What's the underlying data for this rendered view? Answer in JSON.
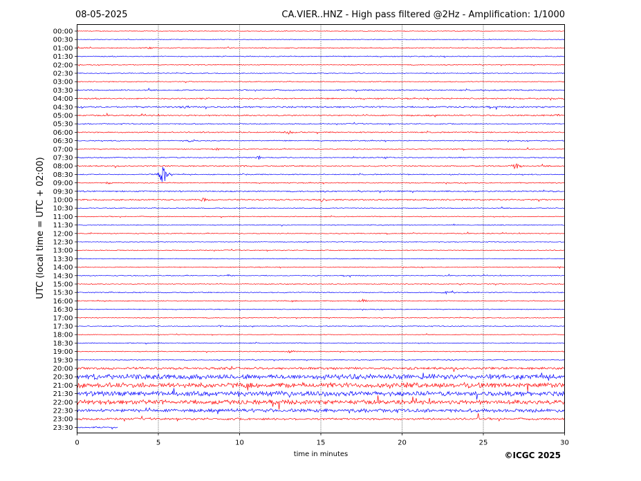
{
  "chart_data": {
    "type": "line",
    "plot_kind": "helicorder",
    "date": "08-05-2025",
    "title": "CA.VIER..HNZ - High pass filtered @2Hz - Amplification: 1/1000",
    "xlabel": "time in minutes",
    "ylabel": "UTC (local time = UTC + 02:00)",
    "credit": "©ICGC 2025",
    "xlim": [
      0,
      30
    ],
    "xticks": [
      0,
      5,
      10,
      15,
      20,
      25,
      30
    ],
    "grid": "vertical dotted at 5-minute ticks",
    "trace_colors": [
      "#ff0000",
      "#0000ff"
    ],
    "row_labels": [
      "00:00",
      "00:30",
      "01:00",
      "01:30",
      "02:00",
      "02:30",
      "03:00",
      "03:30",
      "04:00",
      "04:30",
      "05:00",
      "05:30",
      "06:00",
      "06:30",
      "07:00",
      "07:30",
      "08:00",
      "08:30",
      "09:00",
      "09:30",
      "10:00",
      "10:30",
      "11:00",
      "11:30",
      "12:00",
      "12:30",
      "13:00",
      "13:30",
      "14:00",
      "14:30",
      "15:00",
      "15:30",
      "16:00",
      "16:30",
      "17:00",
      "17:30",
      "18:00",
      "18:30",
      "19:00",
      "19:30",
      "20:00",
      "20:30",
      "21:00",
      "21:30",
      "22:00",
      "22:30",
      "23:00",
      "23:30"
    ],
    "rows": [
      {
        "label": "00:00",
        "noise": 0.4,
        "events": []
      },
      {
        "label": "00:30",
        "noise": 0.4,
        "events": []
      },
      {
        "label": "01:00",
        "noise": 0.6,
        "events": [
          {
            "t": 4.4,
            "amp": 3,
            "dur": 0.5
          }
        ]
      },
      {
        "label": "01:30",
        "noise": 0.6,
        "events": []
      },
      {
        "label": "02:00",
        "noise": 0.5,
        "events": []
      },
      {
        "label": "02:30",
        "noise": 0.5,
        "events": []
      },
      {
        "label": "03:00",
        "noise": 0.5,
        "events": []
      },
      {
        "label": "03:30",
        "noise": 0.7,
        "events": [
          {
            "t": 25.1,
            "amp": 2,
            "dur": 0.5
          }
        ]
      },
      {
        "label": "04:00",
        "noise": 0.8,
        "events": []
      },
      {
        "label": "04:30",
        "noise": 0.9,
        "events": [
          {
            "t": 6.8,
            "amp": 2,
            "dur": 0.8
          }
        ]
      },
      {
        "label": "05:00",
        "noise": 0.8,
        "events": [
          {
            "t": 29.6,
            "amp": 2,
            "dur": 0.5
          }
        ]
      },
      {
        "label": "05:30",
        "noise": 0.6,
        "events": []
      },
      {
        "label": "06:00",
        "noise": 0.7,
        "events": [
          {
            "t": 13.0,
            "amp": 3,
            "dur": 0.8
          }
        ]
      },
      {
        "label": "06:30",
        "noise": 0.6,
        "events": [
          {
            "t": 7.0,
            "amp": 2,
            "dur": 0.8
          }
        ]
      },
      {
        "label": "07:00",
        "noise": 0.6,
        "events": [
          {
            "t": 8.6,
            "amp": 1.5,
            "dur": 1.0
          }
        ]
      },
      {
        "label": "07:30",
        "noise": 0.6,
        "events": [
          {
            "t": 11.2,
            "amp": 4,
            "dur": 0.3
          },
          {
            "t": 19.0,
            "amp": 1.5,
            "dur": 0.8
          }
        ]
      },
      {
        "label": "08:00",
        "noise": 0.7,
        "events": [
          {
            "t": 10.5,
            "amp": 2,
            "dur": 0.5
          },
          {
            "t": 27.0,
            "amp": 6,
            "dur": 0.7
          }
        ]
      },
      {
        "label": "08:30",
        "noise": 0.6,
        "events": [
          {
            "t": 5.3,
            "amp": 16,
            "dur": 0.6
          },
          {
            "t": 10.2,
            "amp": 2,
            "dur": 0.5
          }
        ]
      },
      {
        "label": "09:00",
        "noise": 0.6,
        "events": [
          {
            "t": 1.9,
            "amp": 3,
            "dur": 0.3
          }
        ]
      },
      {
        "label": "09:30",
        "noise": 0.8,
        "events": []
      },
      {
        "label": "10:00",
        "noise": 0.8,
        "events": [
          {
            "t": 7.8,
            "amp": 3,
            "dur": 0.8
          },
          {
            "t": 15.0,
            "amp": 3,
            "dur": 0.5
          }
        ]
      },
      {
        "label": "10:30",
        "noise": 0.5,
        "events": []
      },
      {
        "label": "11:00",
        "noise": 0.5,
        "events": []
      },
      {
        "label": "11:30",
        "noise": 0.5,
        "events": []
      },
      {
        "label": "12:00",
        "noise": 0.5,
        "events": [
          {
            "t": 20.7,
            "amp": 2,
            "dur": 0.6
          }
        ]
      },
      {
        "label": "12:30",
        "noise": 0.4,
        "events": []
      },
      {
        "label": "13:00",
        "noise": 0.5,
        "events": []
      },
      {
        "label": "13:30",
        "noise": 0.4,
        "events": []
      },
      {
        "label": "14:00",
        "noise": 0.5,
        "events": [
          {
            "t": 29.7,
            "amp": 2,
            "dur": 0.3
          }
        ]
      },
      {
        "label": "14:30",
        "noise": 0.5,
        "events": [
          {
            "t": 9.3,
            "amp": 2,
            "dur": 0.4
          }
        ]
      },
      {
        "label": "15:00",
        "noise": 0.5,
        "events": [
          {
            "t": 12.8,
            "amp": 2,
            "dur": 0.4
          },
          {
            "t": 23.6,
            "amp": 3,
            "dur": 0.2
          }
        ]
      },
      {
        "label": "15:30",
        "noise": 0.6,
        "events": [
          {
            "t": 22.7,
            "amp": 2,
            "dur": 0.8
          }
        ]
      },
      {
        "label": "16:00",
        "noise": 0.6,
        "events": [
          {
            "t": 17.6,
            "amp": 3,
            "dur": 0.6
          }
        ]
      },
      {
        "label": "16:30",
        "noise": 0.5,
        "events": []
      },
      {
        "label": "17:00",
        "noise": 0.5,
        "events": []
      },
      {
        "label": "17:30",
        "noise": 0.5,
        "events": [
          {
            "t": 8.8,
            "amp": 3,
            "dur": 0.3
          }
        ]
      },
      {
        "label": "18:00",
        "noise": 0.4,
        "events": [
          {
            "t": 15.2,
            "amp": 2,
            "dur": 0.2
          }
        ]
      },
      {
        "label": "18:30",
        "noise": 0.5,
        "events": []
      },
      {
        "label": "19:00",
        "noise": 0.5,
        "events": [
          {
            "t": 13.1,
            "amp": 3,
            "dur": 0.5
          }
        ]
      },
      {
        "label": "19:30",
        "noise": 0.5,
        "events": [
          {
            "t": 23.0,
            "amp": 2,
            "dur": 0.4
          }
        ]
      },
      {
        "label": "20:00",
        "noise": 1.4,
        "events": []
      },
      {
        "label": "20:30",
        "noise": 3.0,
        "events": []
      },
      {
        "label": "21:00",
        "noise": 3.0,
        "events": []
      },
      {
        "label": "21:30",
        "noise": 2.8,
        "events": []
      },
      {
        "label": "22:00",
        "noise": 2.6,
        "events": []
      },
      {
        "label": "22:30",
        "noise": 2.0,
        "events": []
      },
      {
        "label": "23:00",
        "noise": 1.2,
        "events": [
          {
            "t": 24.7,
            "amp": 9,
            "dur": 0.15
          }
        ]
      },
      {
        "label": "23:30",
        "noise": 0.8,
        "partial_end": 2.5,
        "events": []
      }
    ]
  }
}
